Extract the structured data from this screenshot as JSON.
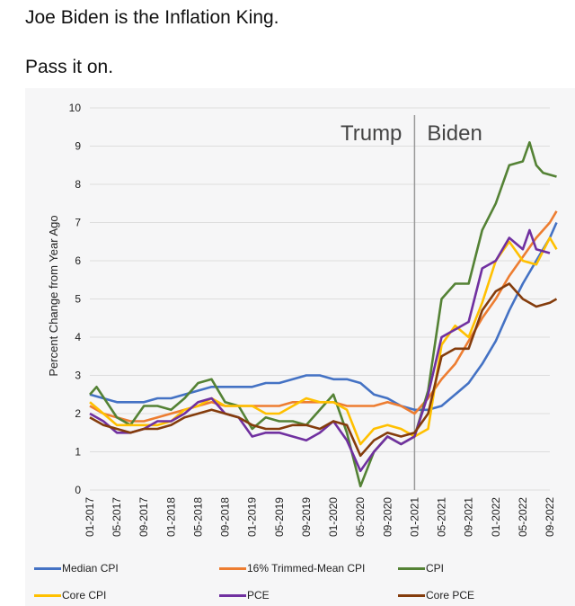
{
  "post": {
    "headline": "Joe Biden is the Inflation King.",
    "subline": "Pass it on."
  },
  "chart_data": {
    "type": "line",
    "title": "",
    "xlabel": "",
    "ylabel": "Percent Change from Year Ago",
    "ylim": [
      0,
      10
    ],
    "yticks": [
      0,
      1,
      2,
      3,
      4,
      5,
      6,
      7,
      8,
      9,
      10
    ],
    "grid": true,
    "legend_position": "bottom",
    "xtick_labels": [
      "01-2017",
      "05-2017",
      "09-2017",
      "01-2018",
      "05-2018",
      "09-2018",
      "01-2019",
      "05-2019",
      "09-2019",
      "01-2020",
      "05-2020",
      "09-2020",
      "01-2021",
      "05-2021",
      "09-2021",
      "01-2022",
      "05-2022",
      "09-2022"
    ],
    "annotations": {
      "divider_at": "01-2021",
      "left_label": "Trump",
      "right_label": "Biden"
    },
    "series": [
      {
        "name": "Median CPI",
        "color": "#4472c4",
        "points": [
          [
            "01-2017",
            2.5
          ],
          [
            "03-2017",
            2.4
          ],
          [
            "05-2017",
            2.3
          ],
          [
            "07-2017",
            2.3
          ],
          [
            "09-2017",
            2.3
          ],
          [
            "11-2017",
            2.4
          ],
          [
            "01-2018",
            2.4
          ],
          [
            "03-2018",
            2.5
          ],
          [
            "05-2018",
            2.6
          ],
          [
            "07-2018",
            2.7
          ],
          [
            "09-2018",
            2.7
          ],
          [
            "11-2018",
            2.7
          ],
          [
            "01-2019",
            2.7
          ],
          [
            "03-2019",
            2.8
          ],
          [
            "05-2019",
            2.8
          ],
          [
            "07-2019",
            2.9
          ],
          [
            "09-2019",
            3.0
          ],
          [
            "11-2019",
            3.0
          ],
          [
            "01-2020",
            2.9
          ],
          [
            "03-2020",
            2.9
          ],
          [
            "05-2020",
            2.8
          ],
          [
            "07-2020",
            2.5
          ],
          [
            "09-2020",
            2.4
          ],
          [
            "11-2020",
            2.2
          ],
          [
            "01-2021",
            2.1
          ],
          [
            "03-2021",
            2.1
          ],
          [
            "05-2021",
            2.2
          ],
          [
            "07-2021",
            2.5
          ],
          [
            "09-2021",
            2.8
          ],
          [
            "11-2021",
            3.3
          ],
          [
            "01-2022",
            3.9
          ],
          [
            "03-2022",
            4.7
          ],
          [
            "05-2022",
            5.4
          ],
          [
            "07-2022",
            6.0
          ],
          [
            "09-2022",
            6.6
          ],
          [
            "10-2022",
            7.0
          ]
        ]
      },
      {
        "name": "16% Trimmed-Mean CPI",
        "color": "#ed7d31",
        "points": [
          [
            "01-2017",
            2.2
          ],
          [
            "03-2017",
            2.0
          ],
          [
            "05-2017",
            1.9
          ],
          [
            "07-2017",
            1.8
          ],
          [
            "09-2017",
            1.8
          ],
          [
            "11-2017",
            1.9
          ],
          [
            "01-2018",
            2.0
          ],
          [
            "03-2018",
            2.1
          ],
          [
            "05-2018",
            2.2
          ],
          [
            "07-2018",
            2.3
          ],
          [
            "09-2018",
            2.2
          ],
          [
            "11-2018",
            2.2
          ],
          [
            "01-2019",
            2.2
          ],
          [
            "03-2019",
            2.2
          ],
          [
            "05-2019",
            2.2
          ],
          [
            "07-2019",
            2.3
          ],
          [
            "09-2019",
            2.3
          ],
          [
            "11-2019",
            2.3
          ],
          [
            "01-2020",
            2.3
          ],
          [
            "03-2020",
            2.2
          ],
          [
            "05-2020",
            2.2
          ],
          [
            "07-2020",
            2.2
          ],
          [
            "09-2020",
            2.3
          ],
          [
            "11-2020",
            2.2
          ],
          [
            "01-2021",
            2.0
          ],
          [
            "03-2021",
            2.4
          ],
          [
            "05-2021",
            2.9
          ],
          [
            "07-2021",
            3.3
          ],
          [
            "09-2021",
            3.9
          ],
          [
            "11-2021",
            4.5
          ],
          [
            "01-2022",
            5.0
          ],
          [
            "03-2022",
            5.6
          ],
          [
            "05-2022",
            6.1
          ],
          [
            "07-2022",
            6.6
          ],
          [
            "09-2022",
            7.0
          ],
          [
            "10-2022",
            7.3
          ]
        ]
      },
      {
        "name": "CPI",
        "color": "#548235",
        "points": [
          [
            "01-2017",
            2.5
          ],
          [
            "02-2017",
            2.7
          ],
          [
            "05-2017",
            1.9
          ],
          [
            "07-2017",
            1.7
          ],
          [
            "09-2017",
            2.2
          ],
          [
            "11-2017",
            2.2
          ],
          [
            "01-2018",
            2.1
          ],
          [
            "03-2018",
            2.4
          ],
          [
            "05-2018",
            2.8
          ],
          [
            "07-2018",
            2.9
          ],
          [
            "09-2018",
            2.3
          ],
          [
            "11-2018",
            2.2
          ],
          [
            "01-2019",
            1.6
          ],
          [
            "03-2019",
            1.9
          ],
          [
            "05-2019",
            1.8
          ],
          [
            "07-2019",
            1.8
          ],
          [
            "09-2019",
            1.7
          ],
          [
            "11-2019",
            2.1
          ],
          [
            "01-2020",
            2.5
          ],
          [
            "03-2020",
            1.5
          ],
          [
            "05-2020",
            0.1
          ],
          [
            "07-2020",
            1.0
          ],
          [
            "09-2020",
            1.4
          ],
          [
            "11-2020",
            1.2
          ],
          [
            "01-2021",
            1.4
          ],
          [
            "03-2021",
            2.6
          ],
          [
            "05-2021",
            5.0
          ],
          [
            "07-2021",
            5.4
          ],
          [
            "09-2021",
            5.4
          ],
          [
            "11-2021",
            6.8
          ],
          [
            "01-2022",
            7.5
          ],
          [
            "03-2022",
            8.5
          ],
          [
            "05-2022",
            8.6
          ],
          [
            "06-2022",
            9.1
          ],
          [
            "07-2022",
            8.5
          ],
          [
            "08-2022",
            8.3
          ],
          [
            "10-2022",
            8.2
          ]
        ]
      },
      {
        "name": "Core CPI",
        "color": "#ffc000",
        "points": [
          [
            "01-2017",
            2.3
          ],
          [
            "03-2017",
            2.0
          ],
          [
            "05-2017",
            1.7
          ],
          [
            "07-2017",
            1.7
          ],
          [
            "09-2017",
            1.7
          ],
          [
            "11-2017",
            1.7
          ],
          [
            "01-2018",
            1.8
          ],
          [
            "03-2018",
            2.1
          ],
          [
            "05-2018",
            2.2
          ],
          [
            "07-2018",
            2.4
          ],
          [
            "09-2018",
            2.2
          ],
          [
            "11-2018",
            2.2
          ],
          [
            "01-2019",
            2.2
          ],
          [
            "03-2019",
            2.0
          ],
          [
            "05-2019",
            2.0
          ],
          [
            "07-2019",
            2.2
          ],
          [
            "09-2019",
            2.4
          ],
          [
            "11-2019",
            2.3
          ],
          [
            "01-2020",
            2.3
          ],
          [
            "03-2020",
            2.1
          ],
          [
            "05-2020",
            1.2
          ],
          [
            "07-2020",
            1.6
          ],
          [
            "09-2020",
            1.7
          ],
          [
            "11-2020",
            1.6
          ],
          [
            "01-2021",
            1.4
          ],
          [
            "03-2021",
            1.6
          ],
          [
            "05-2021",
            3.8
          ],
          [
            "07-2021",
            4.3
          ],
          [
            "09-2021",
            4.0
          ],
          [
            "11-2021",
            4.9
          ],
          [
            "01-2022",
            6.0
          ],
          [
            "03-2022",
            6.5
          ],
          [
            "05-2022",
            6.0
          ],
          [
            "07-2022",
            5.9
          ],
          [
            "09-2022",
            6.6
          ],
          [
            "10-2022",
            6.3
          ]
        ]
      },
      {
        "name": "PCE",
        "color": "#7030a0",
        "points": [
          [
            "01-2017",
            2.0
          ],
          [
            "03-2017",
            1.8
          ],
          [
            "05-2017",
            1.5
          ],
          [
            "07-2017",
            1.5
          ],
          [
            "09-2017",
            1.6
          ],
          [
            "11-2017",
            1.8
          ],
          [
            "01-2018",
            1.8
          ],
          [
            "03-2018",
            2.0
          ],
          [
            "05-2018",
            2.3
          ],
          [
            "07-2018",
            2.4
          ],
          [
            "09-2018",
            2.0
          ],
          [
            "11-2018",
            1.9
          ],
          [
            "01-2019",
            1.4
          ],
          [
            "03-2019",
            1.5
          ],
          [
            "05-2019",
            1.5
          ],
          [
            "07-2019",
            1.4
          ],
          [
            "09-2019",
            1.3
          ],
          [
            "11-2019",
            1.5
          ],
          [
            "01-2020",
            1.8
          ],
          [
            "03-2020",
            1.3
          ],
          [
            "05-2020",
            0.5
          ],
          [
            "07-2020",
            1.0
          ],
          [
            "09-2020",
            1.4
          ],
          [
            "11-2020",
            1.2
          ],
          [
            "01-2021",
            1.4
          ],
          [
            "03-2021",
            2.5
          ],
          [
            "05-2021",
            4.0
          ],
          [
            "07-2021",
            4.2
          ],
          [
            "09-2021",
            4.4
          ],
          [
            "11-2021",
            5.8
          ],
          [
            "01-2022",
            6.0
          ],
          [
            "03-2022",
            6.6
          ],
          [
            "05-2022",
            6.3
          ],
          [
            "06-2022",
            6.8
          ],
          [
            "07-2022",
            6.3
          ],
          [
            "09-2022",
            6.2
          ]
        ]
      },
      {
        "name": "Core PCE",
        "color": "#843c0c",
        "points": [
          [
            "01-2017",
            1.9
          ],
          [
            "03-2017",
            1.7
          ],
          [
            "05-2017",
            1.6
          ],
          [
            "07-2017",
            1.5
          ],
          [
            "09-2017",
            1.6
          ],
          [
            "11-2017",
            1.6
          ],
          [
            "01-2018",
            1.7
          ],
          [
            "03-2018",
            1.9
          ],
          [
            "05-2018",
            2.0
          ],
          [
            "07-2018",
            2.1
          ],
          [
            "09-2018",
            2.0
          ],
          [
            "11-2018",
            1.9
          ],
          [
            "01-2019",
            1.7
          ],
          [
            "03-2019",
            1.6
          ],
          [
            "05-2019",
            1.6
          ],
          [
            "07-2019",
            1.7
          ],
          [
            "09-2019",
            1.7
          ],
          [
            "11-2019",
            1.6
          ],
          [
            "01-2020",
            1.8
          ],
          [
            "03-2020",
            1.7
          ],
          [
            "05-2020",
            0.9
          ],
          [
            "07-2020",
            1.3
          ],
          [
            "09-2020",
            1.5
          ],
          [
            "11-2020",
            1.4
          ],
          [
            "01-2021",
            1.5
          ],
          [
            "03-2021",
            2.0
          ],
          [
            "05-2021",
            3.5
          ],
          [
            "07-2021",
            3.7
          ],
          [
            "09-2021",
            3.7
          ],
          [
            "11-2021",
            4.7
          ],
          [
            "01-2022",
            5.2
          ],
          [
            "03-2022",
            5.4
          ],
          [
            "05-2022",
            5.0
          ],
          [
            "07-2022",
            4.8
          ],
          [
            "09-2022",
            4.9
          ],
          [
            "10-2022",
            5.0
          ]
        ]
      }
    ]
  }
}
